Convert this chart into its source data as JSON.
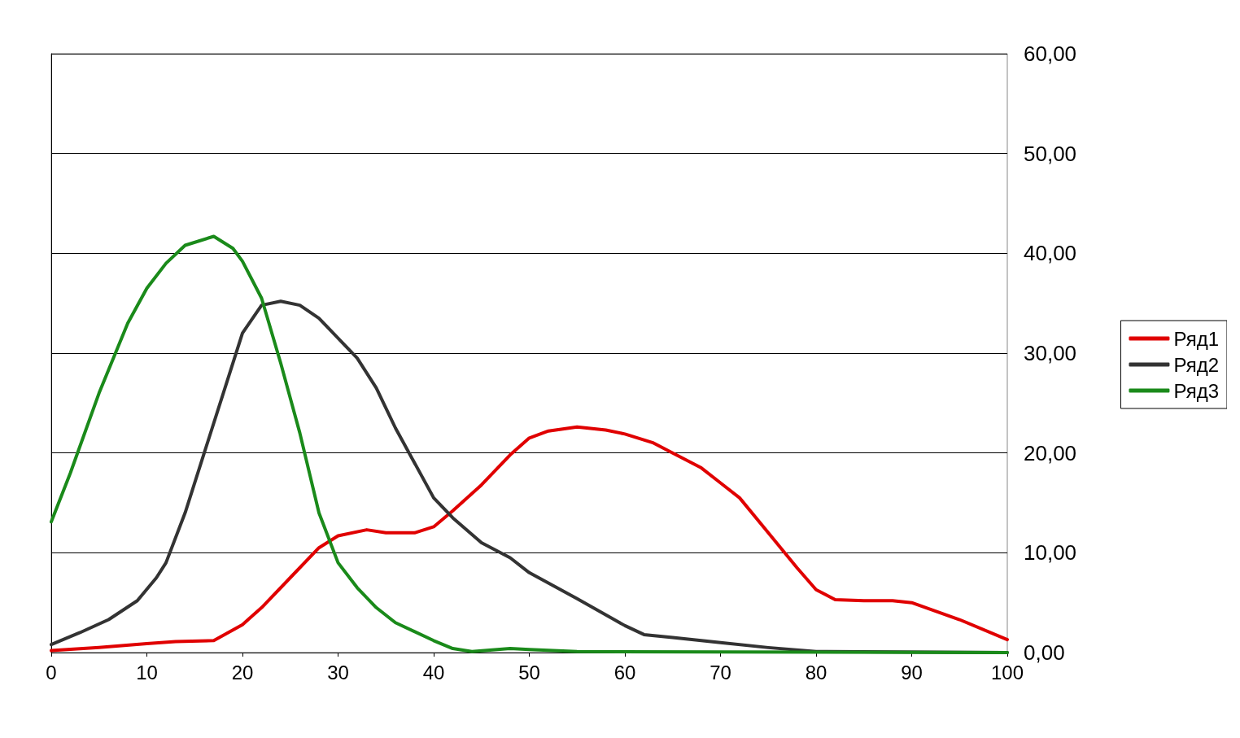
{
  "chart_data": {
    "type": "line",
    "xlim": [
      0,
      100
    ],
    "xticks": [
      0,
      10,
      20,
      30,
      40,
      50,
      60,
      70,
      80,
      90,
      100
    ],
    "ylim": [
      0,
      60
    ],
    "yticks": [
      {
        "value": 0,
        "label": "0,00"
      },
      {
        "value": 10,
        "label": "10,00"
      },
      {
        "value": 20,
        "label": "20,00"
      },
      {
        "value": 30,
        "label": "30,00"
      },
      {
        "value": 40,
        "label": "40,00"
      },
      {
        "value": 50,
        "label": "50,00"
      },
      {
        "value": 60,
        "label": "60,00"
      }
    ],
    "grid": "y",
    "legend": "right",
    "marker": "none",
    "line_style": "solid",
    "series": [
      {
        "name": "Ряд1",
        "color": "#e00000",
        "x": [
          0,
          5,
          10,
          13,
          17,
          20,
          22,
          25,
          28,
          30,
          33,
          35,
          38,
          40,
          42,
          45,
          48,
          50,
          52,
          55,
          58,
          60,
          63,
          65,
          68,
          70,
          72,
          75,
          78,
          80,
          82,
          85,
          88,
          90,
          95,
          100
        ],
        "values": [
          0.2,
          0.5,
          0.9,
          1.1,
          1.2,
          2.8,
          4.5,
          7.5,
          10.5,
          11.7,
          12.3,
          12,
          12,
          12.6,
          14.2,
          16.8,
          19.8,
          21.5,
          22.2,
          22.6,
          22.3,
          21.9,
          21,
          20,
          18.5,
          17,
          15.5,
          12,
          8.5,
          6.3,
          5.3,
          5.2,
          5.2,
          5,
          3.3,
          1.3
        ]
      },
      {
        "name": "Ряд2",
        "color": "#333333",
        "x": [
          0,
          3,
          6,
          9,
          11,
          12,
          14,
          16,
          18,
          20,
          22,
          24,
          26,
          28,
          30,
          32,
          34,
          36,
          38,
          40,
          42,
          45,
          48,
          50,
          55,
          60,
          62,
          65,
          70,
          75,
          80,
          100
        ],
        "values": [
          0.8,
          2,
          3.3,
          5.2,
          7.5,
          9,
          14,
          20,
          26,
          32,
          34.8,
          35.2,
          34.8,
          33.5,
          31.5,
          29.5,
          26.5,
          22.5,
          19,
          15.5,
          13.5,
          11,
          9.5,
          8,
          5.4,
          2.7,
          1.8,
          1.5,
          1,
          0.5,
          0.1,
          0
        ]
      },
      {
        "name": "Ряд3",
        "color": "#1a8a1a",
        "x": [
          0,
          2,
          5,
          8,
          10,
          12,
          14,
          17,
          19,
          20,
          22,
          24,
          26,
          28,
          30,
          32,
          34,
          36,
          40,
          42,
          44,
          48,
          50,
          55,
          100
        ],
        "values": [
          13.1,
          18,
          26,
          33,
          36.5,
          39,
          40.8,
          41.7,
          40.5,
          39.2,
          35.5,
          29,
          22,
          14,
          9,
          6.5,
          4.5,
          3,
          1.2,
          0.4,
          0.1,
          0.4,
          0.3,
          0.1,
          0
        ]
      }
    ]
  }
}
